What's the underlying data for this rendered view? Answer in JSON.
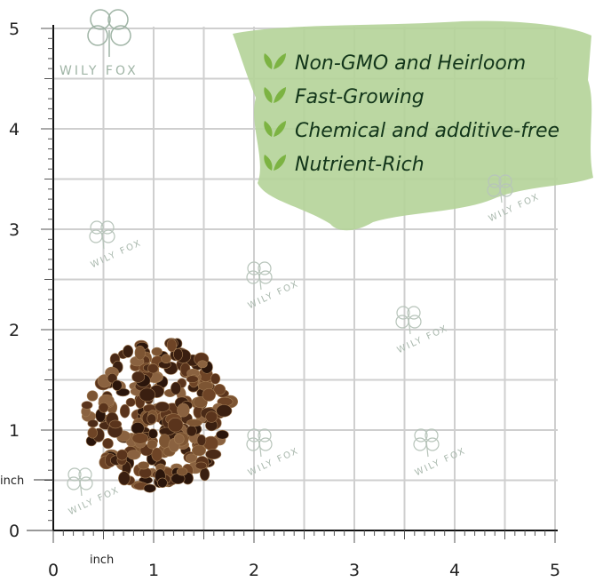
{
  "brand": {
    "name": "WILY FOX",
    "watermark_text": "WILY FOX"
  },
  "ruler": {
    "unit_label_y": "inch",
    "unit_label_x": "inch",
    "y_ticks": [
      "0",
      "1",
      "2",
      "3",
      "4",
      "5"
    ],
    "x_ticks": [
      "0",
      "1",
      "2",
      "3",
      "4",
      "5"
    ]
  },
  "features": {
    "items": [
      {
        "label": "Non-GMO and Heirloom",
        "icon": "leaf-check-icon"
      },
      {
        "label": "Fast-Growing",
        "icon": "leaf-check-icon"
      },
      {
        "label": "Chemical and additive-free",
        "icon": "leaf-check-icon"
      },
      {
        "label": "Nutrient-Rich",
        "icon": "leaf-check-icon"
      }
    ]
  },
  "colors": {
    "banner": "#b5d49a",
    "leaf": "#7cb342",
    "grid": "#cfcfcf",
    "seed": "#4a2a17",
    "text_dark": "#12351a"
  }
}
